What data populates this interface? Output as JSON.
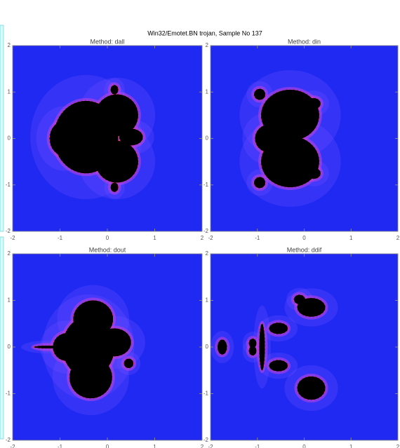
{
  "title": "Win32/Emotet.BN trojan, Sample No 137",
  "chart_data": [
    {
      "type": "image",
      "title": "Method: dall",
      "xlim": [
        -2,
        2
      ],
      "ylim": [
        -2,
        2
      ],
      "xticks": [
        -2,
        -1,
        0,
        1,
        2
      ],
      "yticks": [
        -2,
        -1,
        0,
        1,
        2
      ]
    },
    {
      "type": "image",
      "title": "Method: din",
      "xlim": [
        -2,
        2
      ],
      "ylim": [
        -2,
        2
      ],
      "xticks": [
        -2,
        -1,
        0,
        1,
        2
      ],
      "yticks": [
        -2,
        -1,
        0,
        1,
        2
      ]
    },
    {
      "type": "image",
      "title": "Method: dout",
      "xlim": [
        -2,
        2
      ],
      "ylim": [
        -2,
        2
      ],
      "xticks": [
        -2,
        -1,
        0,
        1,
        2
      ],
      "yticks": [
        -2,
        -1,
        0,
        1,
        2
      ]
    },
    {
      "type": "image",
      "title": "Method: ddif",
      "xlim": [
        -2,
        2
      ],
      "ylim": [
        -2,
        2
      ],
      "xticks": [
        -2,
        -1,
        0,
        1,
        2
      ],
      "yticks": [
        -2,
        -1,
        0,
        1,
        2
      ]
    }
  ]
}
